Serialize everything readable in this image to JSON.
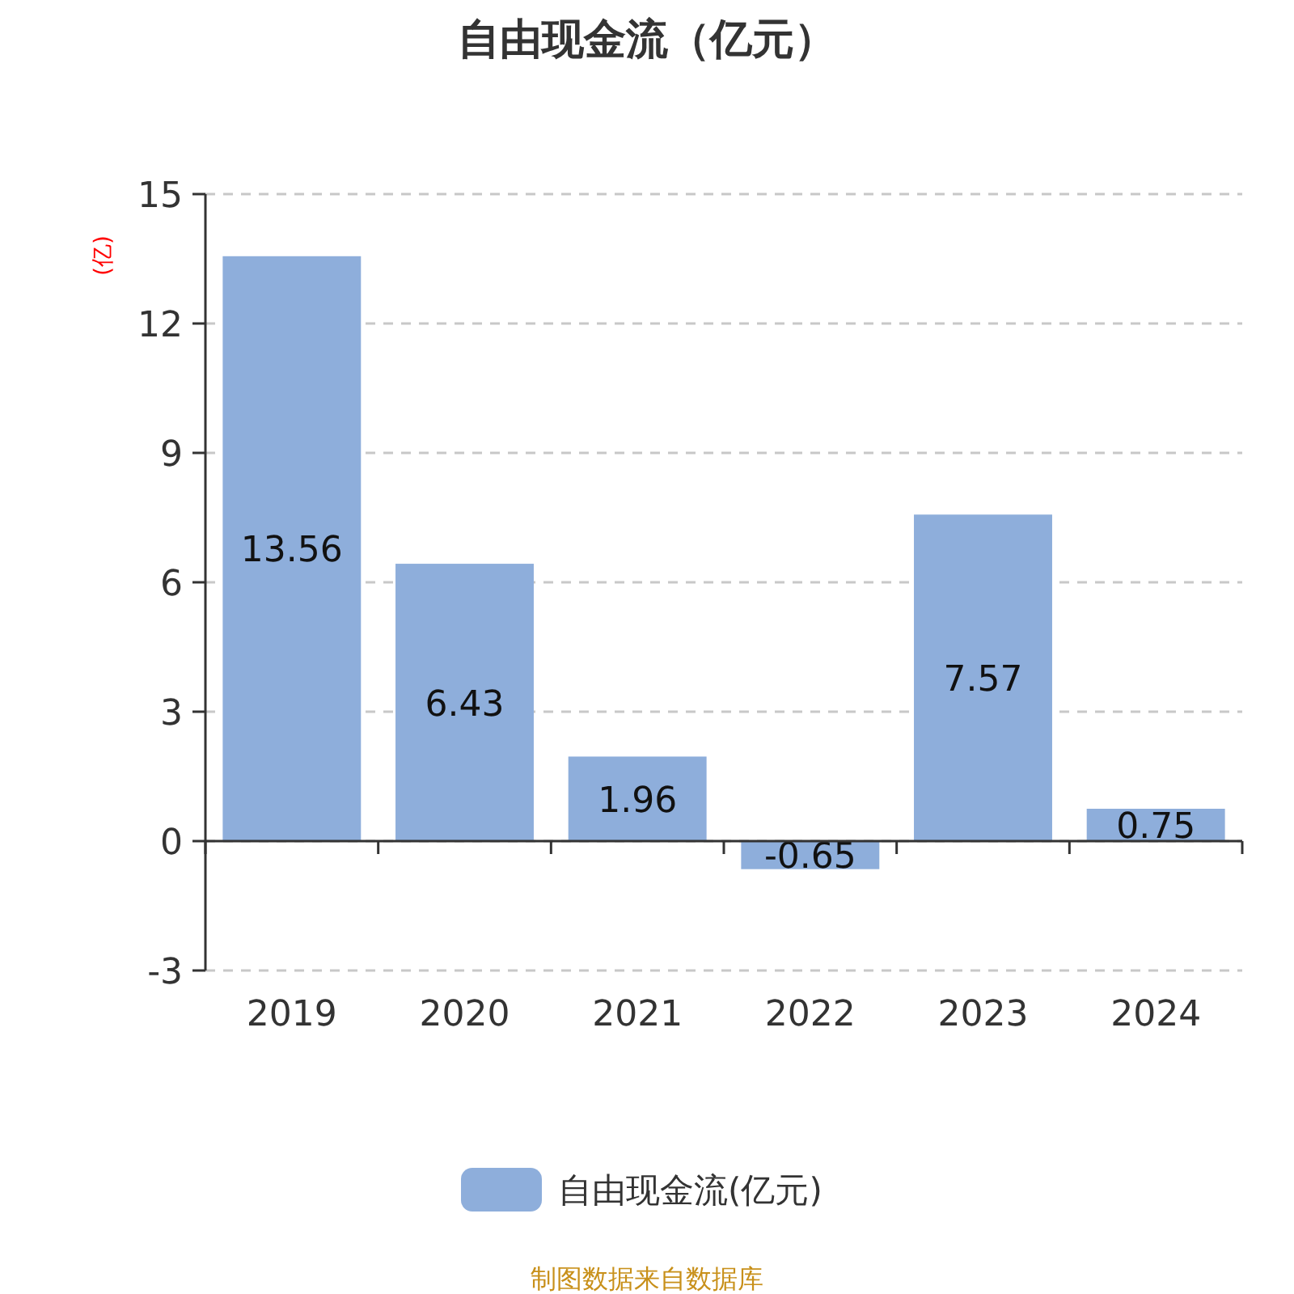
{
  "chart_data": {
    "type": "bar",
    "title": "自由现金流（亿元）",
    "ylabel": "(亿)",
    "categories": [
      "2019",
      "2020",
      "2021",
      "2022",
      "2023",
      "2024"
    ],
    "series": [
      {
        "name": "自由现金流(亿元)",
        "color": "#8eaedb",
        "values": [
          13.56,
          6.43,
          1.96,
          -0.65,
          7.57,
          0.75
        ]
      }
    ],
    "ylim": [
      -3,
      15
    ],
    "yticks": [
      -3,
      0,
      3,
      6,
      9,
      12,
      15
    ],
    "grid": "y",
    "legend": "bottom",
    "data_labels": true,
    "annotations": [
      "制图数据来自数据库"
    ]
  }
}
